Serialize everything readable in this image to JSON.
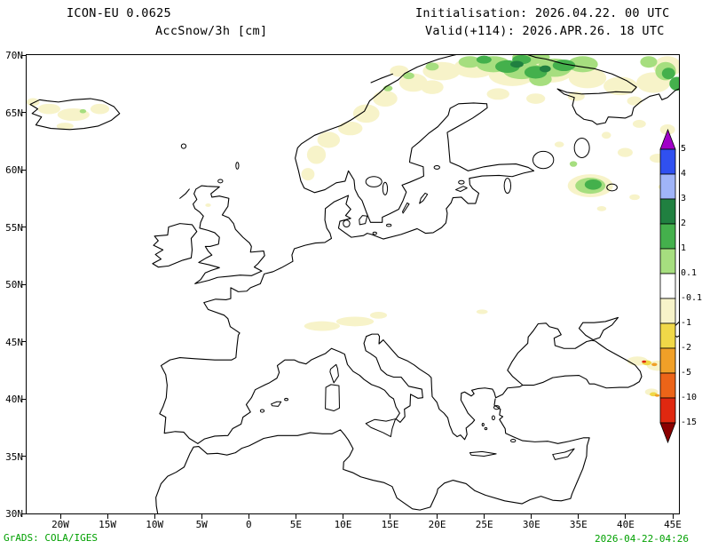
{
  "header": {
    "model": "ICON-EU 0.0625",
    "field": "AccSnow/3h [cm]",
    "init": "Initialisation: 2026.04.22. 00 UTC",
    "valid": "Valid(+114): 2026.APR.26. 18 UTC"
  },
  "footer": {
    "grads": "GrADS: COLA/IGES",
    "timestamp": "2026-04-22-04:26"
  },
  "axes": {
    "x": {
      "labels": [
        "20W",
        "15W",
        "10W",
        "5W",
        "0",
        "5E",
        "10E",
        "15E",
        "20E",
        "25E",
        "30E",
        "35E",
        "40E",
        "45E"
      ]
    },
    "y": {
      "labels": [
        "70N",
        "65N",
        "60N",
        "55N",
        "50N",
        "45N",
        "40N",
        "35N",
        "30N"
      ]
    }
  },
  "colorbar": {
    "levels": [
      "5",
      "4",
      "3",
      "2",
      "1",
      "0.1",
      "-0.1",
      "-1",
      "-2",
      "-5",
      "-10",
      "-15"
    ],
    "colors": [
      "#a000c8",
      "#3050f0",
      "#a0b4f8",
      "#208040",
      "#44b04c",
      "#a6de7f",
      "#ffffff",
      "#f7f3c9",
      "#f0d848",
      "#f0a028",
      "#ec6418",
      "#e02810",
      "#8b0000"
    ]
  },
  "chart_data": {
    "type": "heatmap",
    "title": "AccSnow/3h [cm]",
    "model": "ICON-EU 0.0625",
    "init_time": "2026.04.22. 00 UTC",
    "valid_time": "2026.APR.26. 18 UTC",
    "forecast_hour": "+114",
    "units": "cm",
    "lon_range": [
      "20W",
      "45E"
    ],
    "lat_range": [
      "30N",
      "70N"
    ],
    "contour_levels": [
      -15,
      -10,
      -5,
      -2,
      -1,
      -0.1,
      0.1,
      1,
      2,
      3,
      4,
      5
    ],
    "legend_position": "right",
    "visible_signal": [
      {
        "region": "Northern Scandinavia / Kola Peninsula (66-70N, 20-37E)",
        "value": "0.1 to 3 cm accumulation (green shades)"
      },
      {
        "region": "Norwegian mountains along coast (59-68N)",
        "value": "-1 to 0.1 cm (pale yellow traces)"
      },
      {
        "region": "Iceland",
        "value": "-1 to -0.1 cm (pale yellow)"
      },
      {
        "region": "Alps (46-47N, 6-14E)",
        "value": "-1 to -0.1 cm (pale yellow)"
      },
      {
        "region": "NW Russia around 57-60N, 34-39E",
        "value": "0.1 to 2 cm (green)"
      },
      {
        "region": "Caucasus and E Turkey (40-43.5N, 40-45E)",
        "value": "-10 to -1 cm (yellow/orange/red)"
      },
      {
        "region": "Rest of domain",
        "value": "0 (white)"
      }
    ]
  }
}
